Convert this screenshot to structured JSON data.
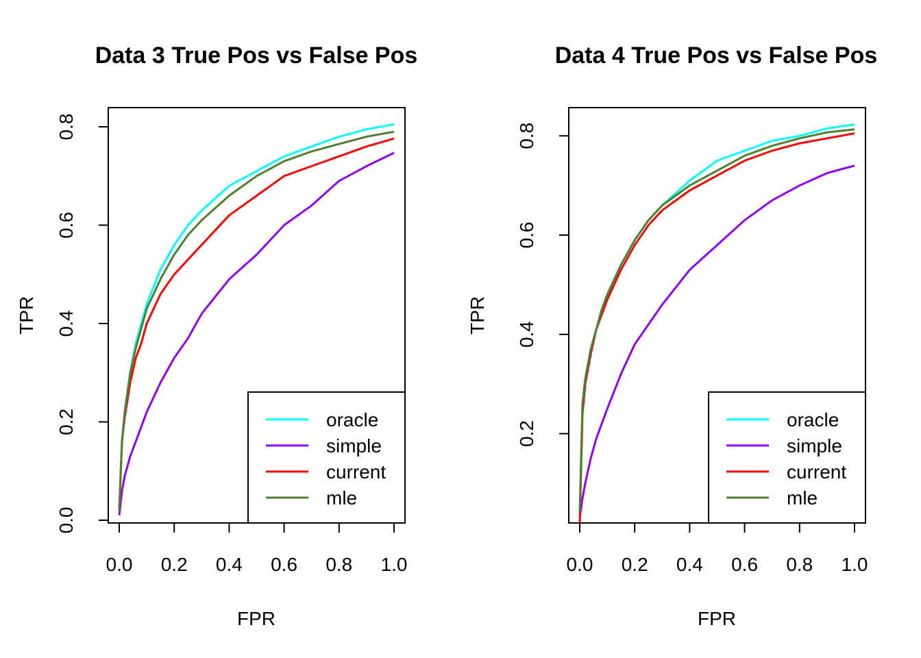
{
  "chart_data": [
    {
      "type": "line",
      "title": "Data 3 True Pos vs False Pos",
      "xlabel": "FPR",
      "ylabel": "TPR",
      "xlim": [
        0,
        1
      ],
      "ylim": [
        0.0,
        0.8
      ],
      "xticks": [
        "0.0",
        "0.2",
        "0.4",
        "0.6",
        "0.8",
        "1.0"
      ],
      "yticks": [
        "0.0",
        "0.2",
        "0.4",
        "0.6",
        "0.8"
      ],
      "legend": "bottom-right",
      "grid": false,
      "x": [
        0.0,
        0.01,
        0.02,
        0.04,
        0.06,
        0.08,
        0.1,
        0.15,
        0.2,
        0.25,
        0.3,
        0.4,
        0.5,
        0.6,
        0.7,
        0.8,
        0.9,
        1.0
      ],
      "series": [
        {
          "name": "oracle",
          "color": "#00ffff",
          "values": [
            0.02,
            0.16,
            0.22,
            0.3,
            0.36,
            0.4,
            0.44,
            0.51,
            0.56,
            0.6,
            0.63,
            0.68,
            0.71,
            0.74,
            0.76,
            0.78,
            0.795,
            0.805
          ]
        },
        {
          "name": "simple",
          "color": "#8b00ff",
          "values": [
            0.01,
            0.06,
            0.09,
            0.13,
            0.16,
            0.19,
            0.22,
            0.28,
            0.33,
            0.37,
            0.42,
            0.49,
            0.54,
            0.6,
            0.64,
            0.69,
            0.72,
            0.747
          ]
        },
        {
          "name": "current",
          "color": "#ff0000",
          "values": [
            0.02,
            0.16,
            0.21,
            0.28,
            0.33,
            0.36,
            0.4,
            0.46,
            0.5,
            0.53,
            0.56,
            0.62,
            0.66,
            0.7,
            0.72,
            0.74,
            0.76,
            0.776
          ]
        },
        {
          "name": "mle",
          "color": "#4f7f2f",
          "values": [
            0.02,
            0.16,
            0.22,
            0.3,
            0.35,
            0.39,
            0.43,
            0.49,
            0.54,
            0.58,
            0.61,
            0.66,
            0.7,
            0.73,
            0.75,
            0.765,
            0.78,
            0.79
          ]
        }
      ]
    },
    {
      "type": "line",
      "title": "Data 4 True Pos vs False Pos",
      "xlabel": "FPR",
      "ylabel": "TPR",
      "xlim": [
        0,
        1
      ],
      "ylim": [
        0.02,
        0.85
      ],
      "xticks": [
        "0.0",
        "0.2",
        "0.4",
        "0.6",
        "0.8",
        "1.0"
      ],
      "yticks": [
        "0.2",
        "0.4",
        "0.6",
        "0.8"
      ],
      "legend": "bottom-right",
      "grid": false,
      "x": [
        0.0,
        0.01,
        0.02,
        0.04,
        0.06,
        0.08,
        0.1,
        0.15,
        0.2,
        0.25,
        0.3,
        0.4,
        0.5,
        0.6,
        0.7,
        0.8,
        0.9,
        1.0
      ],
      "series": [
        {
          "name": "oracle",
          "color": "#00ffff",
          "values": [
            0.04,
            0.26,
            0.31,
            0.37,
            0.41,
            0.45,
            0.48,
            0.54,
            0.59,
            0.63,
            0.66,
            0.71,
            0.75,
            0.77,
            0.79,
            0.8,
            0.815,
            0.823
          ]
        },
        {
          "name": "simple",
          "color": "#8b00ff",
          "values": [
            0.03,
            0.07,
            0.1,
            0.15,
            0.19,
            0.22,
            0.25,
            0.32,
            0.38,
            0.42,
            0.46,
            0.53,
            0.58,
            0.63,
            0.67,
            0.7,
            0.725,
            0.74
          ]
        },
        {
          "name": "current",
          "color": "#ff0000",
          "values": [
            0.02,
            0.24,
            0.3,
            0.36,
            0.41,
            0.44,
            0.47,
            0.53,
            0.58,
            0.62,
            0.65,
            0.69,
            0.72,
            0.75,
            0.77,
            0.785,
            0.795,
            0.805
          ]
        },
        {
          "name": "mle",
          "color": "#4f7f2f",
          "values": [
            0.04,
            0.26,
            0.31,
            0.37,
            0.41,
            0.45,
            0.48,
            0.54,
            0.59,
            0.63,
            0.66,
            0.7,
            0.73,
            0.76,
            0.78,
            0.795,
            0.807,
            0.813
          ]
        }
      ]
    }
  ]
}
